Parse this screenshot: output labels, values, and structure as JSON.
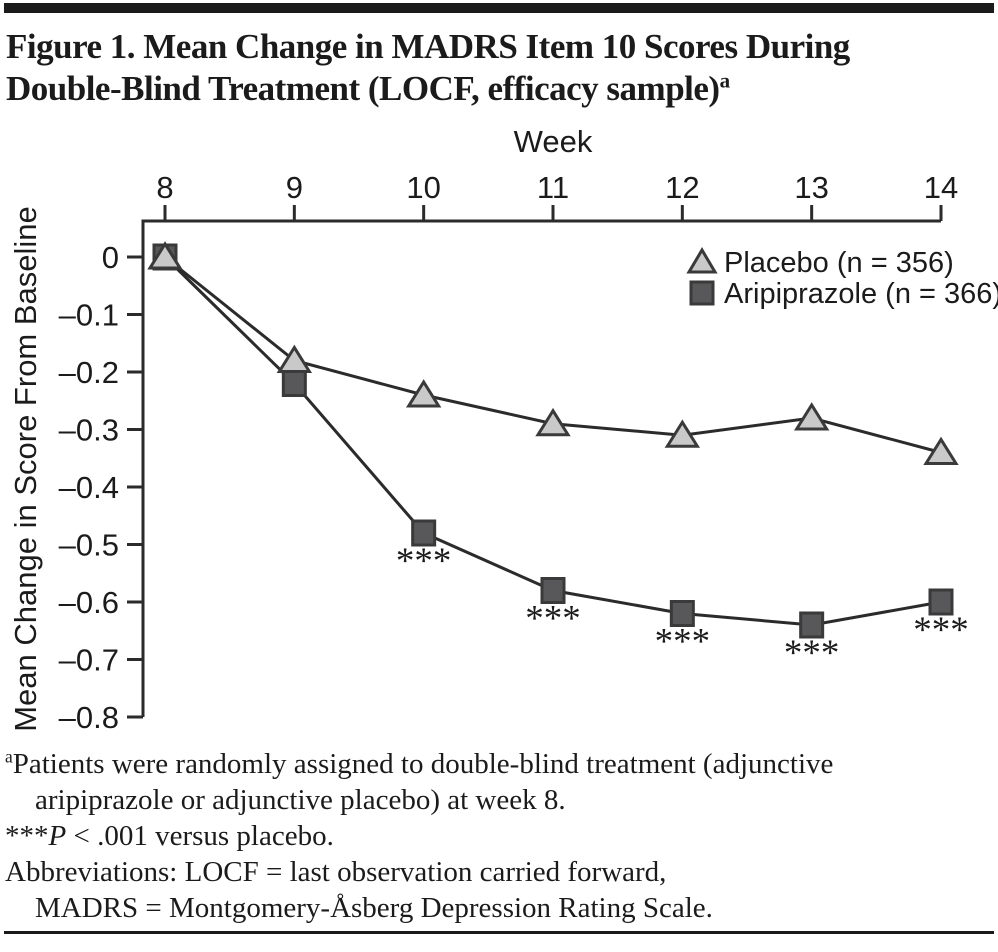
{
  "title": {
    "text": "Figure 1. Mean Change in MADRS Item 10 Scores During\nDouble-Blind Treatment (LOCF, efficacy sample)",
    "superscript": "a"
  },
  "chart_data": {
    "type": "line",
    "xlabel": "Week",
    "ylabel": "Mean Change in Score From Baseline",
    "x": [
      8,
      9,
      10,
      11,
      12,
      13,
      14
    ],
    "xlim": [
      8,
      14
    ],
    "ylim": [
      0,
      -0.8
    ],
    "yticks": [
      0,
      -0.1,
      -0.2,
      -0.3,
      -0.4,
      -0.5,
      -0.6,
      -0.7,
      -0.8
    ],
    "ytick_labels": [
      "0",
      "–0.1",
      "–0.2",
      "–0.3",
      "–0.4",
      "–0.5",
      "–0.6",
      "–0.7",
      "–0.8"
    ],
    "grid": false,
    "legend_position": "top-right-inside",
    "series": [
      {
        "name": "Placebo (n = 356)",
        "marker": "triangle",
        "fill": "#c9c9c9",
        "values": [
          0,
          -0.18,
          -0.24,
          -0.29,
          -0.31,
          -0.28,
          -0.34
        ]
      },
      {
        "name": "Aripiprazole (n = 366)",
        "marker": "square",
        "fill": "#58585a",
        "values": [
          0,
          -0.22,
          -0.48,
          -0.58,
          -0.62,
          -0.64,
          -0.6
        ]
      }
    ],
    "annotations": [
      {
        "series": "Aripiprazole (n = 366)",
        "x": 10,
        "text": "***"
      },
      {
        "series": "Aripiprazole (n = 366)",
        "x": 11,
        "text": "***"
      },
      {
        "series": "Aripiprazole (n = 366)",
        "x": 12,
        "text": "***"
      },
      {
        "series": "Aripiprazole (n = 366)",
        "x": 13,
        "text": "***"
      },
      {
        "series": "Aripiprazole (n = 366)",
        "x": 14,
        "text": "***"
      }
    ]
  },
  "footnotes": [
    {
      "lines": [
        {
          "indent": false,
          "segments": [
            {
              "text": "a",
              "style": "sup"
            },
            {
              "text": "Patients were randomly assigned to double-blind treatment (adjunctive",
              "style": "normal"
            }
          ]
        },
        {
          "indent": true,
          "segments": [
            {
              "text": "aripiprazole or adjunctive placebo) at week 8.",
              "style": "normal"
            }
          ]
        }
      ]
    },
    {
      "lines": [
        {
          "indent": false,
          "segments": [
            {
              "text": "***",
              "style": "normal"
            },
            {
              "text": "P",
              "style": "italic"
            },
            {
              "text": " < .001 versus placebo.",
              "style": "normal"
            }
          ]
        }
      ]
    },
    {
      "lines": [
        {
          "indent": false,
          "segments": [
            {
              "text": "Abbreviations: LOCF = last observation carried forward,",
              "style": "normal"
            }
          ]
        },
        {
          "indent": true,
          "segments": [
            {
              "text": "MADRS = Montgomery-Åsberg Depression Rating Scale.",
              "style": "normal"
            }
          ]
        }
      ]
    }
  ],
  "colors": {
    "rule": "#1b1b1b",
    "line": "#2b2b2b",
    "marker_stroke": "#3a3a3a",
    "text": "#1b1b1b"
  }
}
